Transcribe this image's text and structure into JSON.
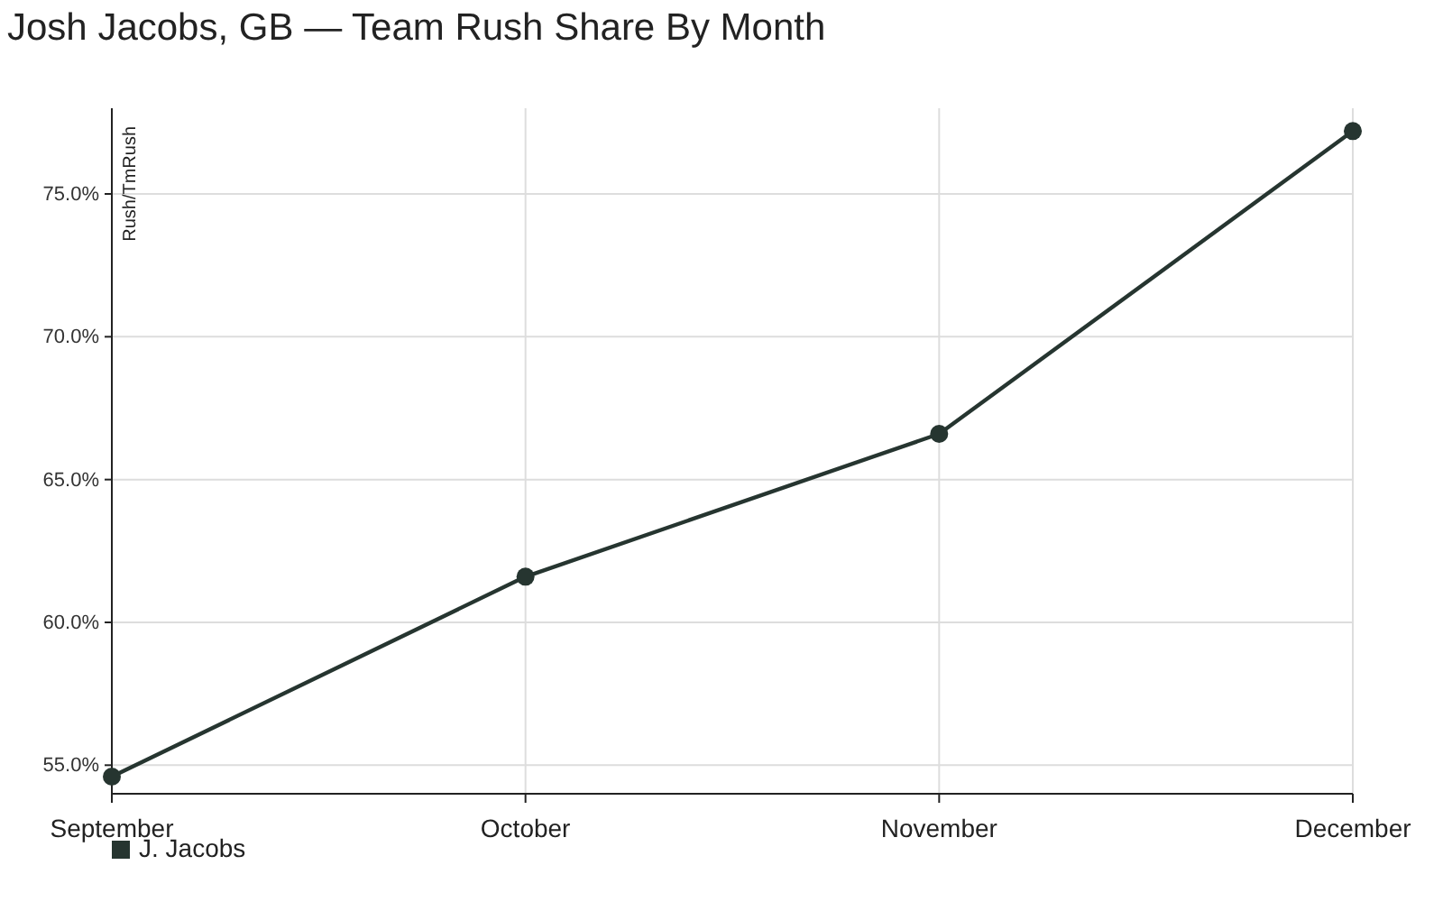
{
  "chart_data": {
    "type": "line",
    "title": "Josh Jacobs, GB — Team Rush Share By Month",
    "ylabel": "Rush/TmRush",
    "categories": [
      "September",
      "October",
      "November",
      "December"
    ],
    "series": [
      {
        "name": "J. Jacobs",
        "color": "#263530",
        "values": [
          54.6,
          61.6,
          66.6,
          77.2
        ]
      }
    ],
    "ylim": [
      54,
      78
    ],
    "yticks": [
      {
        "value": 55,
        "label": "55.0%"
      },
      {
        "value": 60,
        "label": "60.0%"
      },
      {
        "value": 65,
        "label": "65.0%"
      },
      {
        "value": 70,
        "label": "70.0%"
      },
      {
        "value": 75,
        "label": "75.0%"
      }
    ],
    "grid": true,
    "legend": "bottom left",
    "marker": "circle",
    "line_style": "solid"
  }
}
